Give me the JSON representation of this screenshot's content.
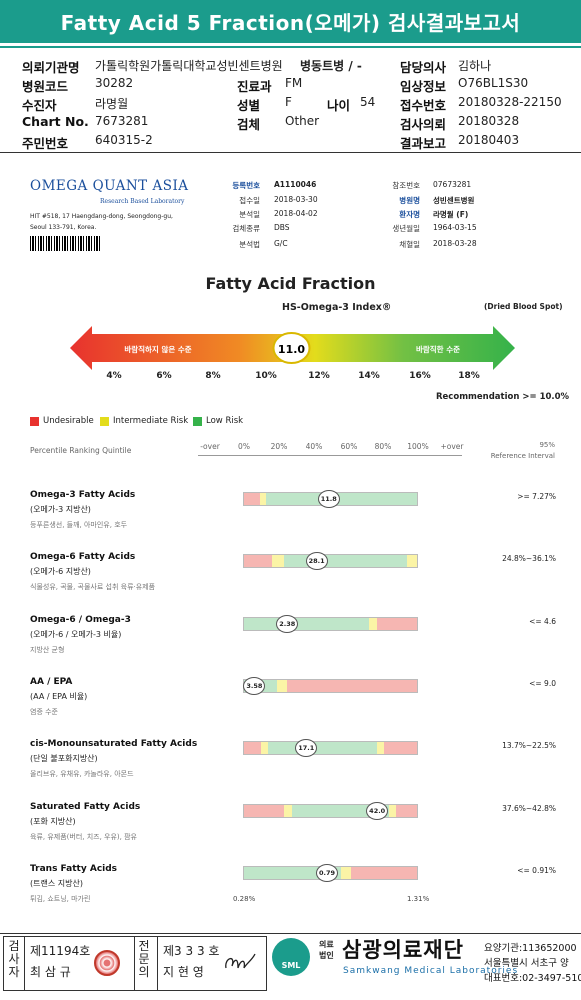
{
  "title": "Fatty Acid 5 Fraction(오메가) 검사결과보고서",
  "header": {
    "institution_label": "의뢰기관명",
    "institution": "가톨릭학원가톨릭대학교성빈센트병원",
    "ward_label": "병동트병 / -",
    "code_label": "병원코드",
    "code": "30282",
    "dept_label": "진료과",
    "dept": "FM",
    "patient_label": "수진자",
    "patient": "라명월",
    "sex_label": "성별",
    "sex": "F",
    "age_label": "나이",
    "age": "54",
    "chart_label": "Chart No.",
    "chart": "7673281",
    "exam_label": "검체",
    "exam": "Other",
    "id_label": "주민번호",
    "id": "640315-2",
    "doctor_label": "담당의사",
    "doctor": "김하나",
    "clinical_label": "임상정보",
    "clinical": "O76BL1S30",
    "receipt_label": "접수번호",
    "receipt": "20180328-22150",
    "request_label": "검사의뢰",
    "request": "20180328",
    "report_label": "결과보고",
    "report": "20180403"
  },
  "omega": {
    "logo": "OMEGA QUANT ASIA",
    "logo_sub": "Research Based Laboratory",
    "address": "HIT #518, 17 Haengdang-dong, Seongdong-gu, Seoul 133-791, Korea.",
    "reg_label": "등록번호",
    "reg": "A1110046",
    "recv_label": "접수일",
    "recv": "2018-03-30",
    "anal_label": "분석일",
    "anal": "2018-04-02",
    "type_label": "검체종류",
    "type": "DBS",
    "method_label": "분석법",
    "method": "G/C",
    "ref_label": "참조번호",
    "ref": "07673281",
    "hosp_label": "병원명",
    "hosp": "성빈센트병원",
    "pname_label": "환자명",
    "pname": "라명월 (F)",
    "dob_label": "생년월일",
    "dob": "1964-03-15",
    "blood_label": "채혈일",
    "blood": "2018-03-28"
  },
  "index": {
    "title": "Fatty Acid Fraction",
    "hs": "HS-Omega-3 Index®",
    "dbs": "(Dried Blood Spot)",
    "bad": "바람직하지 않은 수준",
    "good": "바람직한 수준",
    "value": 11.0,
    "value_label": "11.0",
    "ticks": [
      "4%",
      "6%",
      "8%",
      "10%",
      "12%",
      "14%",
      "16%",
      "18%"
    ],
    "recommendation": "Recommendation  >= 10.0%"
  },
  "legend": [
    {
      "label": "Undesirable",
      "color": "#e8322e"
    },
    {
      "label": "Intermediate Risk",
      "color": "#e3dc1c"
    },
    {
      "label": "Low Risk",
      "color": "#35b24a"
    }
  ],
  "scale": {
    "label": "Percentile Ranking Quintile",
    "ticks": [
      "-over",
      "0%",
      "20%",
      "40%",
      "60%",
      "80%",
      "100%",
      "+over"
    ],
    "ref_title": "95%",
    "ref_sub": "Reference Interval"
  },
  "colors": {
    "red": "#f6b6b2",
    "yellow": "#fbf4a6",
    "green": "#bfe6c9",
    "teal": "#1b9c8c",
    "navy": "#1b4f9c"
  },
  "rows": [
    {
      "name": "Omega-3 Fatty Acids",
      "sub": "(오메가-3 지방산)",
      "desc": "등푸른생선, 들깨, 아마인유, 호두",
      "segs": [
        [
          "r",
          0,
          0.09
        ],
        [
          "y",
          0.09,
          0.13
        ],
        [
          "g",
          0.13,
          1.0
        ]
      ],
      "value": "11.8",
      "pos": 0.49,
      "ref": ">= 7.27%"
    },
    {
      "name": "Omega-6 Fatty Acids",
      "sub": "(오메가-6 지방산)",
      "desc": "식물성유, 곡물, 곡물사료 섭취 육류·유제품",
      "segs": [
        [
          "r",
          0,
          0.16
        ],
        [
          "y",
          0.16,
          0.23
        ],
        [
          "g",
          0.23,
          0.94
        ],
        [
          "y",
          0.94,
          1.0
        ]
      ],
      "value": "28.1",
      "pos": 0.42,
      "ref": "24.8%~36.1%"
    },
    {
      "name": "Omega-6 / Omega-3",
      "sub": "(오메가-6 / 오메가-3 비율)",
      "desc": "지방산 균형",
      "segs": [
        [
          "g",
          0,
          0.72
        ],
        [
          "y",
          0.72,
          0.77
        ],
        [
          "r",
          0.77,
          1.0
        ]
      ],
      "value": "2.38",
      "pos": 0.25,
      "ref": "<= 4.6"
    },
    {
      "name": "AA / EPA",
      "sub": "(AA / EPA 비율)",
      "desc": "염증 수준",
      "segs": [
        [
          "g",
          0,
          0.19
        ],
        [
          "y",
          0.19,
          0.25
        ],
        [
          "r",
          0.25,
          1.0
        ]
      ],
      "value": "3.58",
      "pos": 0.06,
      "ref": "<= 9.0"
    },
    {
      "name": "cis-Monounsaturated Fatty Acids",
      "sub": "(단일 불포화지방산)",
      "desc": "올리브유, 유채유, 카놀라유, 아몬드",
      "segs": [
        [
          "r",
          0,
          0.1
        ],
        [
          "y",
          0.1,
          0.14
        ],
        [
          "g",
          0.14,
          0.77
        ],
        [
          "y",
          0.77,
          0.81
        ],
        [
          "r",
          0.81,
          1.0
        ]
      ],
      "value": "17.1",
      "pos": 0.36,
      "ref": "13.7%~22.5%"
    },
    {
      "name": "Saturated Fatty Acids",
      "sub": "(포화 지방산)",
      "desc": "육류, 유제품(버터, 치즈, 우유), 팜유",
      "segs": [
        [
          "r",
          0,
          0.23
        ],
        [
          "y",
          0.23,
          0.28
        ],
        [
          "g",
          0.28,
          0.84
        ],
        [
          "y",
          0.84,
          0.88
        ],
        [
          "r",
          0.88,
          1.0
        ]
      ],
      "value": "42.0",
      "pos": 0.77,
      "ref": "37.6%~42.8%"
    },
    {
      "name": "Trans Fatty Acids",
      "sub": "(트랜스 지방산)",
      "desc": "튀김, 쇼트닝, 마가린",
      "segs": [
        [
          "g",
          0,
          0.56
        ],
        [
          "y",
          0.56,
          0.62
        ],
        [
          "r",
          0.62,
          1.0
        ]
      ],
      "value": "0.79",
      "pos": 0.48,
      "ref": "<= 0.91%"
    }
  ],
  "axis": {
    "left": "0.28%",
    "right": "1.31%"
  },
  "footer": {
    "v1": "검사자",
    "lic1": "제11194호",
    "n1": "최 삼 규",
    "v2": "전문의",
    "lic2": "제3 3 3 호",
    "n2": "지 현 영",
    "sml": "SML",
    "org_small1": "의료",
    "org_small2": "법인",
    "org": "삼광의료재단",
    "org_en": "Samkwang Medical Laboratories",
    "info1": "요양기관:113652000",
    "info2": "서울특별시 서초구 양",
    "info3": "대표번호:02-3497-510"
  }
}
